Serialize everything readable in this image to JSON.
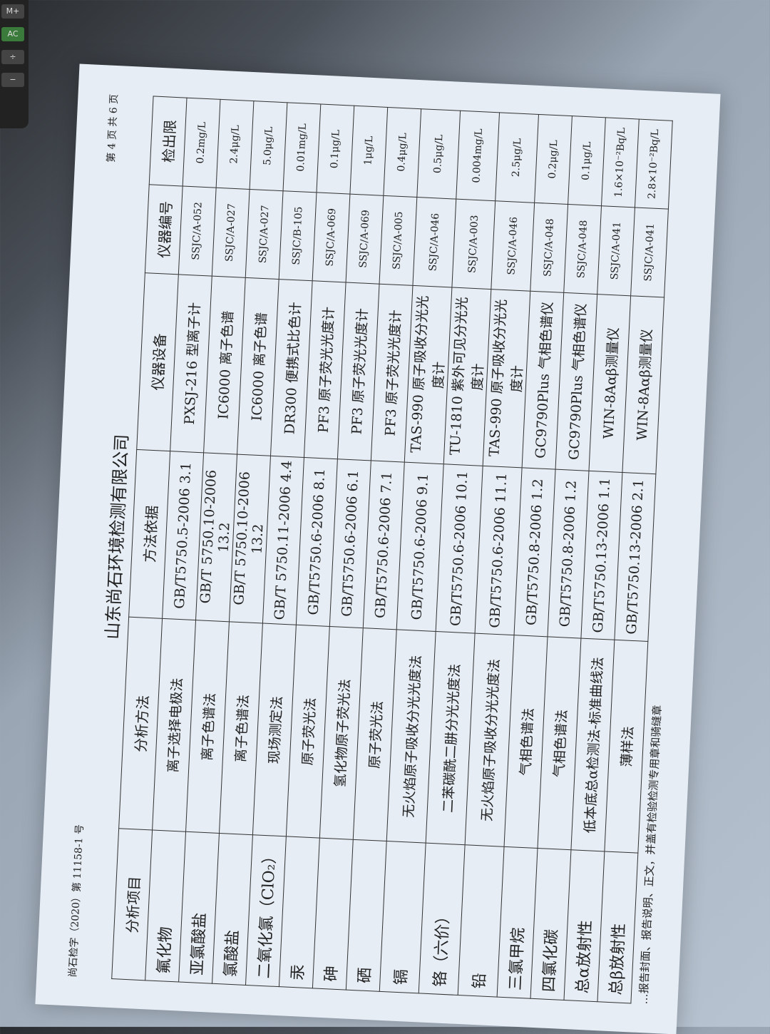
{
  "report_no": "尚石检字（2020）第 11158-1 号",
  "page_info": "第 4 页 共 6 页",
  "company": "山东尚石环境检测有限公司",
  "headers": [
    "分析项目",
    "分析方法",
    "方法依据",
    "仪器设备",
    "仪器编号",
    "检出限"
  ],
  "rows": [
    [
      "氟化物",
      "离子选择电极法",
      "GB/T5750.5-2006 3.1",
      "PXSJ-216 型离子计",
      "SSJC/A-052",
      "0.2mg/L"
    ],
    [
      "亚氯酸盐",
      "离子色谱法",
      "GB/T 5750.10-2006 13.2",
      "IC6000 离子色谱",
      "SSJC/A-027",
      "2.4μg/L"
    ],
    [
      "氯酸盐",
      "离子色谱法",
      "GB/T 5750.10-2006 13.2",
      "IC6000 离子色谱",
      "SSJC/A-027",
      "5.0μg/L"
    ],
    [
      "二氧化氯（ClO₂）",
      "现场测定法",
      "GB/T 5750.11-2006 4.4",
      "DR300 便携式比色计",
      "SSJC/B-105",
      "0.01mg/L"
    ],
    [
      "汞",
      "原子荧光法",
      "GB/T5750.6-2006 8.1",
      "PF3 原子荧光光度计",
      "SSJC/A-069",
      "0.1μg/L"
    ],
    [
      "砷",
      "氢化物原子荧光法",
      "GB/T5750.6-2006 6.1",
      "PF3 原子荧光光度计",
      "SSJC/A-069",
      "1μg/L"
    ],
    [
      "硒",
      "原子荧光法",
      "GB/T5750.6-2006 7.1",
      "PF3 原子荧光光度计",
      "SSJC/A-005",
      "0.4μg/L"
    ],
    [
      "镉",
      "无火焰原子吸收分光光度法",
      "GB/T5750.6-2006 9.1",
      "TAS-990 原子吸收分光光度计",
      "SSJC/A-046",
      "0.5μg/L"
    ],
    [
      "铬（六价）",
      "二苯碳酰二肼分光光度法",
      "GB/T5750.6-2006 10.1",
      "TU-1810 紫外可见分光光度计",
      "SSJC/A-003",
      "0.004mg/L"
    ],
    [
      "铅",
      "无火焰原子吸收分光光度法",
      "GB/T5750.6-2006 11.1",
      "TAS-990 原子吸收分光光度计",
      "SSJC/A-046",
      "2.5μg/L"
    ],
    [
      "三氯甲烷",
      "气相色谱法",
      "GB/T5750.8-2006 1.2",
      "GC9790Plus 气相色谱仪",
      "SSJC/A-048",
      "0.2μg/L"
    ],
    [
      "四氯化碳",
      "气相色谱法",
      "GB/T5750.8-2006 1.2",
      "GC9790Plus 气相色谱仪",
      "SSJC/A-048",
      "0.1μg/L"
    ],
    [
      "总α放射性",
      "低本底总α检测法-标准曲线法",
      "GB/T5750.13-2006 1.1",
      "WIN-8Aαβ测量仪",
      "SSJC/A-041",
      "1.6×10⁻²Bq/L"
    ],
    [
      "总β放射性",
      "薄样法",
      "GB/T5750.13-2006 2.1",
      "WIN-8Aαβ测量仪",
      "SSJC/A-041",
      "2.8×10⁻²Bq/L"
    ]
  ],
  "footer": "…报告封面、报告说明、正文，并盖有检验检测专用章和骑缝章",
  "calculator_keys": [
    "M+",
    "AC",
    "÷",
    "−"
  ]
}
